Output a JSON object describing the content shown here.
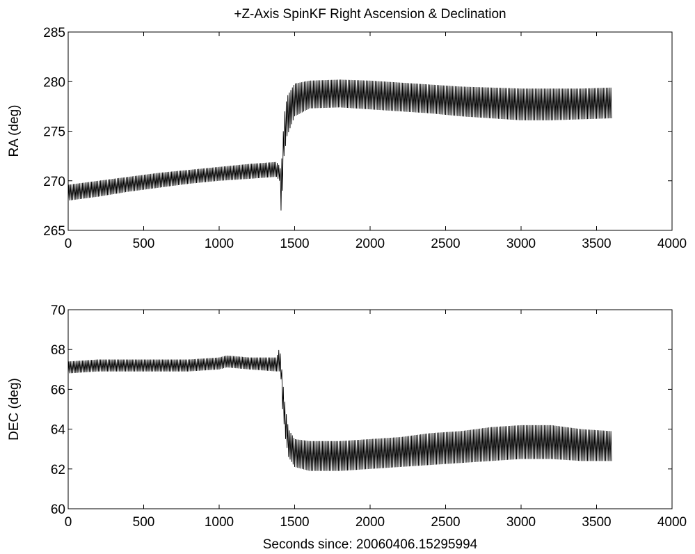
{
  "figure": {
    "title": "+Z-Axis SpinKF Right Ascension & Declination",
    "xlabel": "Seconds since:  20060406.15295994"
  },
  "chart_data": [
    {
      "type": "line",
      "title": "+Z-Axis SpinKF Right Ascension & Declination",
      "xlabel": "",
      "ylabel": "RA (deg)",
      "xlim": [
        0,
        4000
      ],
      "ylim": [
        265,
        285
      ],
      "xticks": [
        0,
        500,
        1000,
        1500,
        2000,
        2500,
        3000,
        3500,
        4000
      ],
      "yticks": [
        265,
        270,
        275,
        280,
        285
      ],
      "grid": false,
      "line_color": "#000000",
      "oscillation_period_s": 10,
      "series": [
        {
          "x": [
            0,
            200,
            400,
            600,
            800,
            1000,
            1200,
            1380,
            1400,
            1410,
            1420,
            1430,
            1450,
            1500,
            1600,
            1800,
            2000,
            2200,
            2400,
            2600,
            2800,
            3000,
            3200,
            3400,
            3600
          ],
          "ymin": [
            268.0,
            268.4,
            268.9,
            269.3,
            269.7,
            270.0,
            270.2,
            270.4,
            270.0,
            267.0,
            269.0,
            272.5,
            274.5,
            276.5,
            277.3,
            277.4,
            277.2,
            277.0,
            276.8,
            276.5,
            276.3,
            276.1,
            276.1,
            276.2,
            276.3
          ],
          "ymax": [
            269.6,
            270.0,
            270.4,
            270.8,
            271.1,
            271.4,
            271.7,
            271.9,
            271.5,
            271.0,
            273.5,
            276.5,
            278.5,
            279.8,
            280.1,
            280.2,
            280.1,
            279.9,
            279.7,
            279.5,
            279.4,
            279.3,
            279.3,
            279.3,
            279.4
          ]
        }
      ]
    },
    {
      "type": "line",
      "title": "",
      "xlabel": "Seconds since:  20060406.15295994",
      "ylabel": "DEC (deg)",
      "xlim": [
        0,
        4000
      ],
      "ylim": [
        60,
        70
      ],
      "xticks": [
        0,
        500,
        1000,
        1500,
        2000,
        2500,
        3000,
        3500,
        4000
      ],
      "yticks": [
        60,
        62,
        64,
        66,
        68,
        70
      ],
      "grid": false,
      "line_color": "#000000",
      "oscillation_period_s": 10,
      "series": [
        {
          "x": [
            0,
            200,
            400,
            600,
            800,
            1000,
            1050,
            1200,
            1380,
            1400,
            1410,
            1420,
            1440,
            1460,
            1500,
            1600,
            1800,
            2000,
            2200,
            2400,
            2600,
            2800,
            3000,
            3200,
            3400,
            3600
          ],
          "ymin": [
            66.8,
            66.9,
            66.9,
            66.9,
            66.9,
            67.0,
            67.1,
            67.0,
            66.9,
            66.9,
            66.5,
            65.0,
            63.5,
            62.6,
            62.1,
            61.9,
            61.9,
            62.0,
            62.1,
            62.2,
            62.3,
            62.4,
            62.5,
            62.5,
            62.4,
            62.4
          ],
          "ymax": [
            67.4,
            67.5,
            67.5,
            67.5,
            67.5,
            67.6,
            67.7,
            67.6,
            67.6,
            68.1,
            67.5,
            66.5,
            65.0,
            64.0,
            63.5,
            63.4,
            63.4,
            63.5,
            63.6,
            63.8,
            63.9,
            64.1,
            64.2,
            64.2,
            64.0,
            63.9
          ]
        }
      ]
    }
  ]
}
